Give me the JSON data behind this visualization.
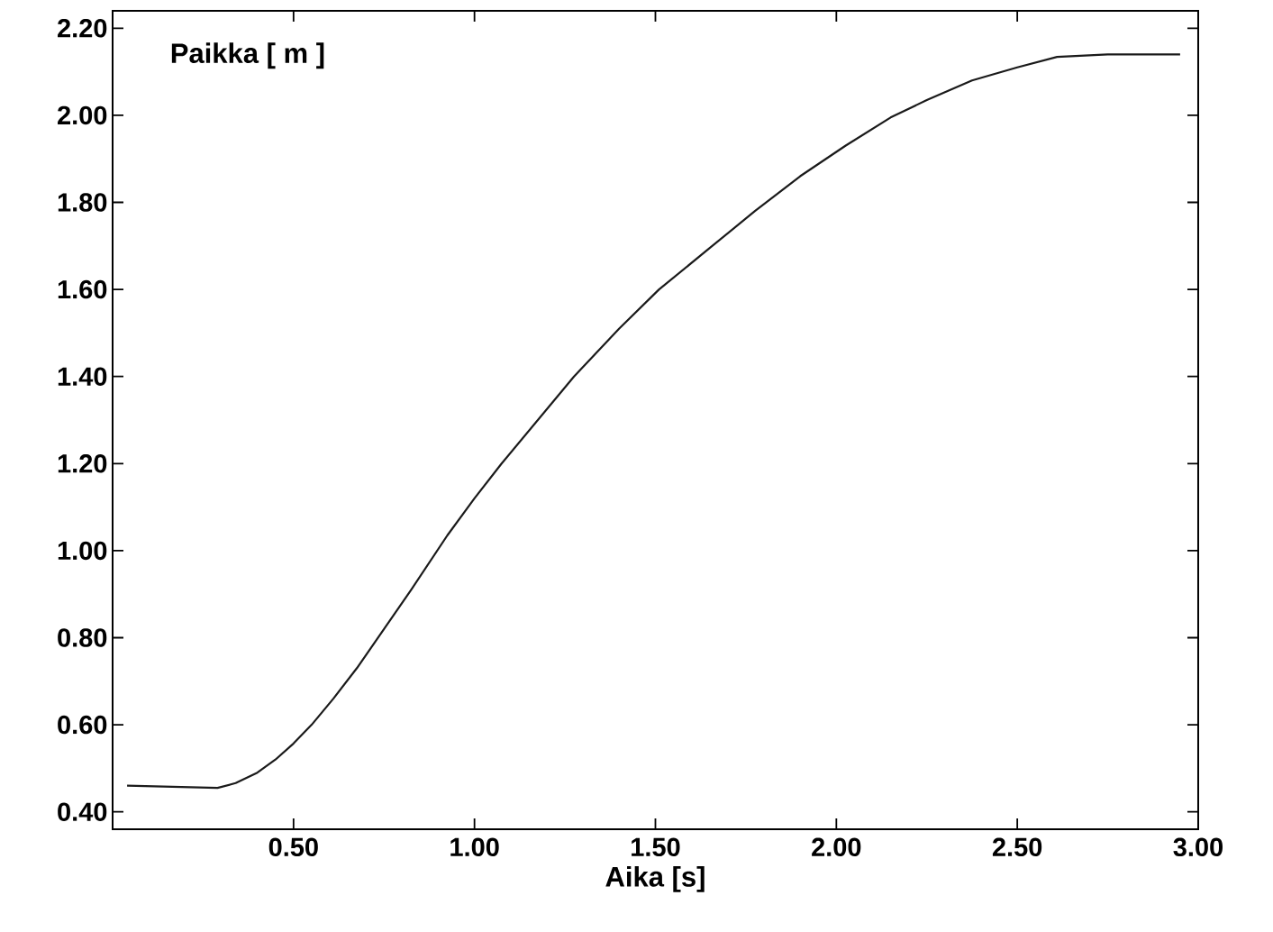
{
  "chart_data": {
    "type": "line",
    "xlabel": "Aika [s]",
    "ylabel": "Paikka [ m ]",
    "color": "#1a1a1a",
    "line_style": "solid",
    "marker": "none",
    "grid": false,
    "xlim": [
      0,
      3
    ],
    "ylim": [
      0.36,
      2.24
    ],
    "xticks": [
      {
        "value": 0.5,
        "label": "0.50"
      },
      {
        "value": 1.0,
        "label": "1.00"
      },
      {
        "value": 1.5,
        "label": "1.50"
      },
      {
        "value": 2.0,
        "label": "2.00"
      },
      {
        "value": 2.5,
        "label": "2.50"
      },
      {
        "value": 3.0,
        "label": "3.00"
      }
    ],
    "yticks": [
      {
        "value": 0.4,
        "label": "0.40"
      },
      {
        "value": 0.6,
        "label": "0.60"
      },
      {
        "value": 0.8,
        "label": "0.80"
      },
      {
        "value": 1.0,
        "label": "1.00"
      },
      {
        "value": 1.2,
        "label": "1.20"
      },
      {
        "value": 1.4,
        "label": "1.40"
      },
      {
        "value": 1.6,
        "label": "1.60"
      },
      {
        "value": 1.8,
        "label": "1.80"
      },
      {
        "value": 2.0,
        "label": "2.00"
      },
      {
        "value": 2.2,
        "label": "2.20"
      }
    ],
    "x": [
      0.04,
      0.29,
      0.34,
      0.4,
      0.45,
      0.5,
      0.55,
      0.61,
      0.675,
      0.75,
      0.825,
      0.925,
      1.0,
      1.075,
      1.175,
      1.275,
      1.4,
      1.51,
      1.65,
      1.775,
      1.9,
      2.025,
      2.15,
      2.25,
      2.375,
      2.5,
      2.61,
      2.75,
      2.95
    ],
    "values": [
      0.46,
      0.455,
      0.466,
      0.49,
      0.52,
      0.557,
      0.6,
      0.66,
      0.73,
      0.82,
      0.91,
      1.035,
      1.12,
      1.2,
      1.3,
      1.4,
      1.51,
      1.6,
      1.695,
      1.78,
      1.86,
      1.93,
      1.995,
      2.035,
      2.08,
      2.11,
      2.134,
      2.14,
      2.14
    ]
  }
}
